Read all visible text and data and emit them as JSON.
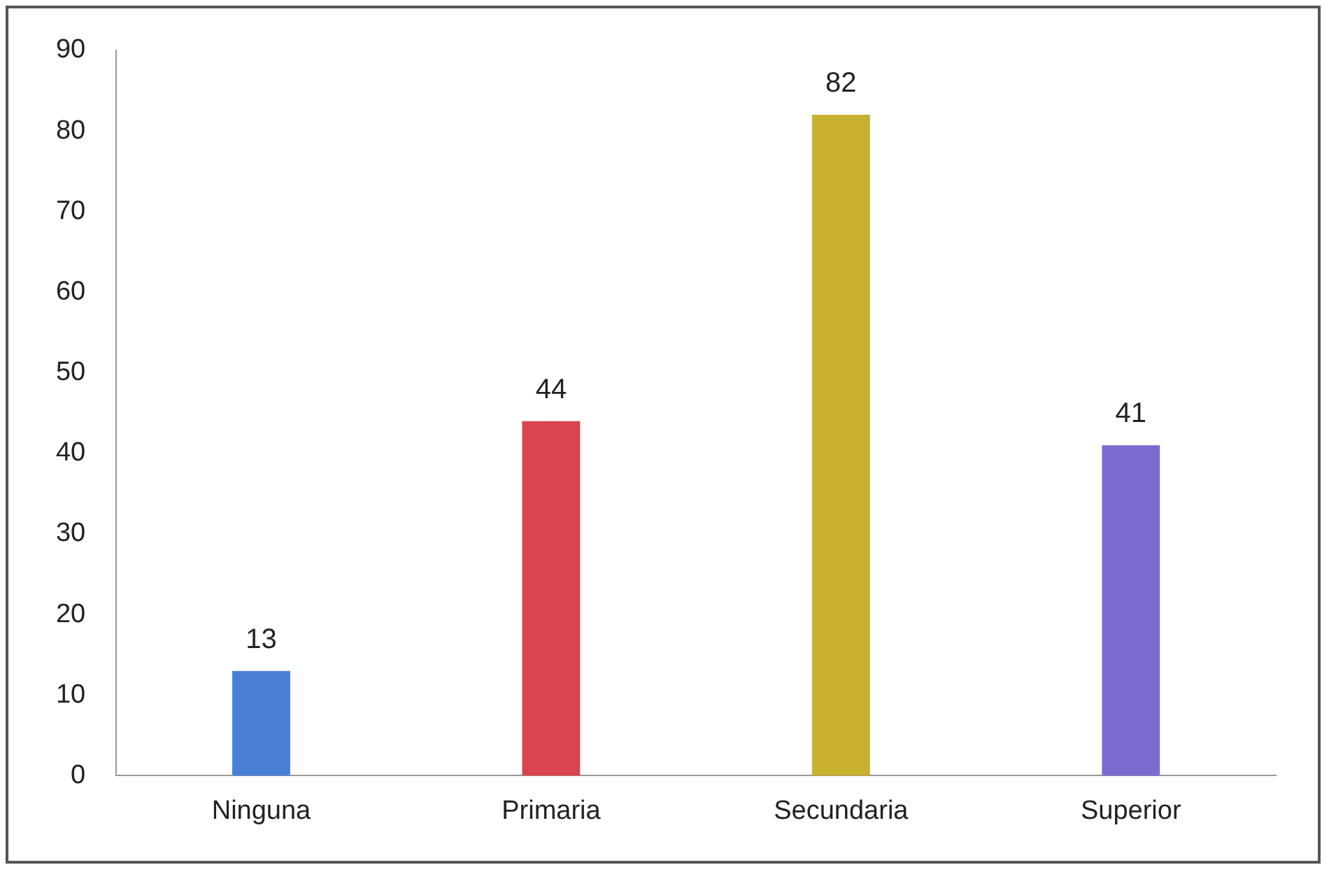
{
  "chart_data": {
    "type": "bar",
    "categories": [
      "Ninguna",
      "Primaria",
      "Secundaria",
      "Superior"
    ],
    "values": [
      13,
      44,
      82,
      41
    ],
    "colors": [
      "#4a7fd6",
      "#d8444f",
      "#c8b12e",
      "#7a6ccf"
    ],
    "ylim": [
      0,
      90
    ],
    "yticks": [
      0,
      10,
      20,
      30,
      40,
      50,
      60,
      70,
      80,
      90
    ],
    "grid": false,
    "legend": false,
    "data_labels": true
  }
}
